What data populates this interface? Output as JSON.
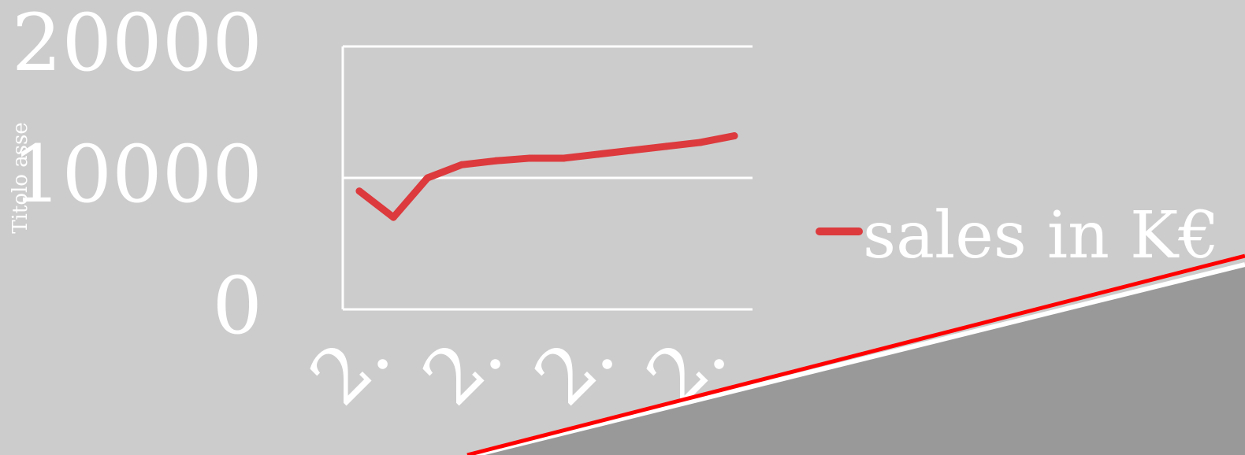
{
  "chart_data": {
    "type": "line",
    "title": "",
    "ylabel": "Titolo asse",
    "ylim": [
      0,
      20000
    ],
    "yticks": [
      "0",
      "10000",
      "20000"
    ],
    "grid": true,
    "legend_position": "right",
    "series": [
      {
        "name": "sales in K€",
        "color": "#dc3a3d",
        "values": [
          9000,
          7000,
          10000,
          11000,
          11300,
          11500,
          11500,
          11800,
          12100,
          12400,
          12700,
          13200
        ]
      }
    ],
    "x_tick_labels_partially_visible": [
      "2.",
      "2.",
      "2.",
      "2."
    ]
  },
  "colors": {
    "background": "#cccccc",
    "axis_and_grid": "#ffffff",
    "overlay_line": "#ff0000",
    "overlay_fill": "#999999"
  }
}
